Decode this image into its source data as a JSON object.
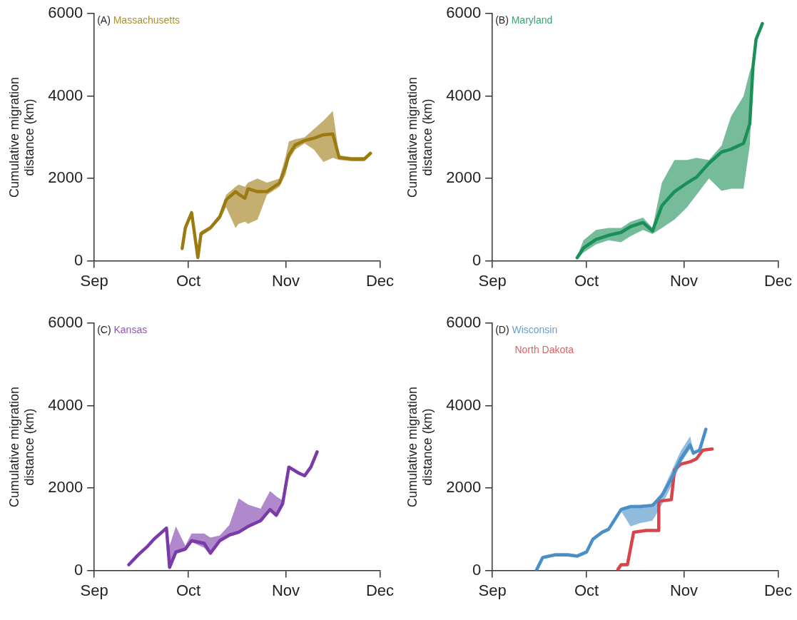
{
  "chart_data": [
    {
      "type": "line",
      "title": "(A)",
      "ylabel": "Cumulative migration distance (km)",
      "legend": "top left",
      "xlim": [
        "--09-01",
        "--12-01"
      ],
      "xticks": [
        {
          "value": "--09-01",
          "label": "Sep"
        },
        {
          "value": "--10-01",
          "label": "Oct"
        },
        {
          "value": "--11-01",
          "label": "Nov"
        },
        {
          "value": "--12-01",
          "label": "Dec"
        }
      ],
      "ylim": [
        0,
        6000
      ],
      "yticks": [
        0,
        2000,
        4000,
        6000
      ],
      "series": [
        {
          "name": "Massachusetts",
          "color": "#9c7a12",
          "x": [
            "--09-29",
            "--09-30",
            "--10-02",
            "--10-04",
            "--10-05",
            "--10-08",
            "--10-11",
            "--10-13",
            "--10-16",
            "--10-17",
            "--10-19",
            "--10-20",
            "--10-23",
            "--10-26",
            "--10-30",
            "--11-01",
            "--11-02",
            "--11-04",
            "--11-07",
            "--11-10",
            "--11-13",
            "--11-16",
            "--11-18",
            "--11-22",
            "--11-26",
            "--11-28"
          ],
          "values": [
            300,
            800,
            1170,
            80,
            660,
            800,
            1070,
            1480,
            1680,
            1620,
            1520,
            1750,
            1680,
            1680,
            1890,
            2300,
            2570,
            2810,
            2920,
            2980,
            3060,
            3080,
            2510,
            2470,
            2470,
            2610
          ],
          "lower": [
            250,
            750,
            1100,
            30,
            600,
            750,
            1000,
            1300,
            800,
            900,
            950,
            900,
            1000,
            1600,
            1800,
            2100,
            2450,
            2700,
            2850,
            2700,
            2400,
            2500,
            2450,
            2420,
            2420,
            2560
          ],
          "upper": [
            350,
            850,
            1230,
            130,
            720,
            850,
            1130,
            1600,
            1800,
            1850,
            1800,
            1900,
            2000,
            1900,
            2000,
            2550,
            2900,
            2950,
            3000,
            3200,
            3400,
            3640,
            2560,
            2520,
            2520,
            2660
          ]
        }
      ]
    },
    {
      "type": "line",
      "title": "(B)",
      "ylabel": "Cumulative migration distance (km)",
      "legend": "top left",
      "xlim": [
        "--09-01",
        "--12-01"
      ],
      "xticks": [
        {
          "value": "--09-01",
          "label": "Sep"
        },
        {
          "value": "--10-01",
          "label": "Oct"
        },
        {
          "value": "--11-01",
          "label": "Nov"
        },
        {
          "value": "--12-01",
          "label": "Dec"
        }
      ],
      "ylim": [
        0,
        6000
      ],
      "yticks": [
        0,
        2000,
        4000,
        6000
      ],
      "series": [
        {
          "name": "Maryland",
          "color": "#1a8f57",
          "x": [
            "--09-28",
            "--09-30",
            "--10-04",
            "--10-08",
            "--10-12",
            "--10-15",
            "--10-19",
            "--10-22",
            "--10-25",
            "--10-29",
            "--11-02",
            "--11-05",
            "--11-09",
            "--11-13",
            "--11-16",
            "--11-20",
            "--11-22",
            "--11-23",
            "--11-24",
            "--11-26"
          ],
          "values": [
            75,
            310,
            520,
            620,
            690,
            830,
            930,
            725,
            1340,
            1680,
            1890,
            2030,
            2370,
            2640,
            2710,
            2850,
            3330,
            4700,
            5380,
            5760
          ],
          "lower": [
            50,
            200,
            400,
            500,
            450,
            600,
            750,
            650,
            800,
            1000,
            1300,
            1600,
            2000,
            1700,
            1750,
            1750,
            2800,
            4500,
            5300,
            5700
          ],
          "upper": [
            100,
            500,
            750,
            800,
            800,
            950,
            1050,
            800,
            1900,
            2450,
            2450,
            2500,
            2450,
            2800,
            3500,
            4000,
            4600,
            4800,
            5450,
            5800
          ]
        }
      ]
    },
    {
      "type": "line",
      "title": "(C)",
      "ylabel": "Cumulative migration distance (km)",
      "legend": "top left",
      "xlim": [
        "--09-01",
        "--12-01"
      ],
      "xticks": [
        {
          "value": "--09-01",
          "label": "Sep"
        },
        {
          "value": "--10-01",
          "label": "Oct"
        },
        {
          "value": "--11-01",
          "label": "Nov"
        },
        {
          "value": "--12-01",
          "label": "Dec"
        }
      ],
      "ylim": [
        0,
        6000
      ],
      "yticks": [
        0,
        2000,
        4000,
        6000
      ],
      "series": [
        {
          "name": "Kansas",
          "color": "#7a3aa8",
          "x": [
            "--09-12",
            "--09-15",
            "--09-18",
            "--09-20",
            "--09-24",
            "--09-25",
            "--09-27",
            "--09-30",
            "--10-02",
            "--10-06",
            "--10-08",
            "--10-11",
            "--10-14",
            "--10-17",
            "--10-20",
            "--10-24",
            "--10-27",
            "--10-29",
            "--10-31",
            "--11-02",
            "--11-05",
            "--11-07",
            "--11-09",
            "--11-11"
          ],
          "values": [
            140,
            380,
            590,
            760,
            1030,
            75,
            450,
            520,
            725,
            660,
            420,
            725,
            860,
            930,
            1070,
            1210,
            1480,
            1340,
            1620,
            2510,
            2370,
            2300,
            2510,
            2880
          ],
          "lower": [
            100,
            340,
            550,
            720,
            990,
            40,
            400,
            480,
            690,
            550,
            380,
            690,
            820,
            890,
            1030,
            1170,
            1440,
            1300,
            1580,
            2470,
            2330,
            2260,
            2470,
            2840
          ],
          "upper": [
            180,
            420,
            630,
            800,
            1070,
            600,
            1070,
            600,
            900,
            900,
            800,
            850,
            1100,
            1750,
            1600,
            1500,
            1930,
            1800,
            1700,
            2550,
            2410,
            2340,
            2550,
            2920
          ]
        }
      ]
    },
    {
      "type": "line",
      "title": "(D)",
      "ylabel": "Cumulative migration distance (km)",
      "legend": "top left",
      "xlim": [
        "--09-01",
        "--12-01"
      ],
      "xticks": [
        {
          "value": "--09-01",
          "label": "Sep"
        },
        {
          "value": "--10-01",
          "label": "Oct"
        },
        {
          "value": "--11-01",
          "label": "Nov"
        },
        {
          "value": "--12-01",
          "label": "Dec"
        }
      ],
      "ylim": [
        0,
        6000
      ],
      "yticks": [
        0,
        2000,
        4000,
        6000
      ],
      "series": [
        {
          "name": "Wisconsin",
          "color": "#4a8fc8",
          "x": [
            "--09-15",
            "--09-17",
            "--09-21",
            "--09-25",
            "--09-28",
            "--10-01",
            "--10-03",
            "--10-06",
            "--10-08",
            "--10-10",
            "--10-12",
            "--10-15",
            "--10-18",
            "--10-22",
            "--10-25",
            "--10-28",
            "--10-31",
            "--11-03",
            "--11-04",
            "--11-06",
            "--11-08"
          ],
          "values": [
            6,
            315,
            380,
            380,
            350,
            450,
            760,
            930,
            1000,
            1240,
            1480,
            1550,
            1550,
            1580,
            1820,
            2230,
            2710,
            3050,
            2850,
            2920,
            3430
          ],
          "lower": [
            0,
            280,
            340,
            340,
            310,
            410,
            720,
            890,
            960,
            1200,
            1440,
            1070,
            1150,
            1210,
            1600,
            2050,
            2600,
            2950,
            2800,
            2880,
            3390
          ],
          "upper": [
            50,
            350,
            420,
            420,
            390,
            490,
            800,
            970,
            1040,
            1280,
            1520,
            1590,
            1590,
            1620,
            1900,
            2400,
            2900,
            3260,
            2900,
            2960,
            3470
          ]
        },
        {
          "name": "North Dakota",
          "color": "#d9444a",
          "x": [
            "--10-11",
            "--10-12",
            "--10-14",
            "--10-16",
            "--10-20",
            "--10-24",
            "--10-24",
            "--10-28",
            "--10-29",
            "--10-31",
            "--11-03",
            "--11-05",
            "--11-07",
            "--11-10"
          ],
          "values": [
            30,
            140,
            140,
            930,
            970,
            970,
            1680,
            1720,
            2440,
            2580,
            2640,
            2710,
            2920,
            2950
          ]
        }
      ]
    }
  ]
}
